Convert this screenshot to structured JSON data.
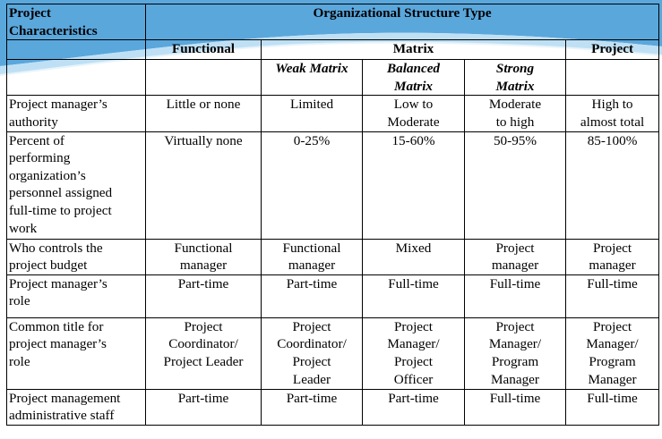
{
  "table": {
    "corner": [
      "Project",
      "Characteristics"
    ],
    "group_title": "Organizational Structure Type",
    "col_functional": "Functional",
    "col_matrix": "Matrix",
    "col_project": "Project",
    "sub_weak": "Weak Matrix",
    "sub_balanced": [
      "Balanced",
      "Matrix"
    ],
    "sub_strong": [
      "Strong",
      "Matrix"
    ],
    "rows": [
      {
        "label": [
          "Project manager’s",
          "authority"
        ],
        "cells": [
          [
            "Little or none"
          ],
          [
            "Limited"
          ],
          [
            "Low to",
            "Moderate"
          ],
          [
            "Moderate",
            "to high"
          ],
          [
            "High to",
            "almost total"
          ]
        ]
      },
      {
        "label": [
          "Percent of",
          "performing",
          "organization’s",
          "personnel assigned",
          "full-time to project",
          "work"
        ],
        "cells": [
          [
            "Virtually none"
          ],
          [
            "0-25%"
          ],
          [
            "15-60%"
          ],
          [
            "50-95%"
          ],
          [
            "85-100%"
          ]
        ]
      },
      {
        "label": [
          "Who controls the",
          "project budget"
        ],
        "cells": [
          [
            "Functional",
            "manager"
          ],
          [
            "Functional",
            "manager"
          ],
          [
            "Mixed"
          ],
          [
            "Project",
            "manager"
          ],
          [
            "Project",
            "manager"
          ]
        ]
      },
      {
        "label": [
          "Project manager’s",
          "role"
        ],
        "cells": [
          [
            "Part-time"
          ],
          [
            "Part-time"
          ],
          [
            "Full-time"
          ],
          [
            "Full-time"
          ],
          [
            "Full-time"
          ]
        ]
      },
      {
        "label": [
          "Common title for",
          "project manager’s",
          "role"
        ],
        "cells": [
          [
            "Project",
            "Coordinator/",
            "Project Leader"
          ],
          [
            "Project",
            "Coordinator/",
            "Project",
            "Leader"
          ],
          [
            "Project",
            "Manager/",
            "Project",
            "Officer"
          ],
          [
            "Project",
            "Manager/",
            "Program",
            "Manager"
          ],
          [
            "Project",
            "Manager/",
            "Program",
            "Manager"
          ]
        ]
      },
      {
        "label": [
          "Project management",
          "administrative staff"
        ],
        "cells": [
          [
            "Part-time"
          ],
          [
            "Part-time"
          ],
          [
            "Part-time"
          ],
          [
            "Full-time"
          ],
          [
            "Full-time"
          ]
        ]
      }
    ]
  },
  "colors": {
    "header_band": "#5aa7dc",
    "header_band_light": "#bfe0f4",
    "rule": "#000000"
  }
}
